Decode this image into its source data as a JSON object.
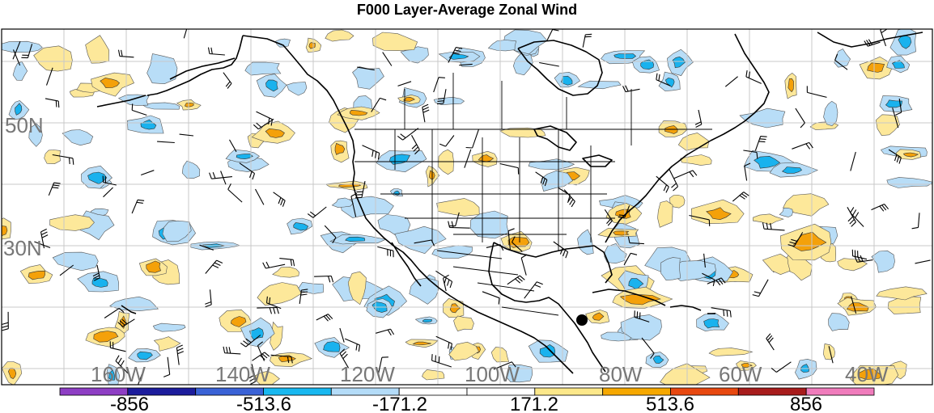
{
  "title": "F000 Layer-Average Zonal Wind",
  "lat_labels": [
    "50N",
    "30N"
  ],
  "lon_labels": [
    "160W",
    "140W",
    "120W",
    "100W",
    "80W",
    "60W",
    "40W"
  ],
  "colorbar": {
    "colors": [
      "#8e3ec4",
      "#1c1c9c",
      "#3a62d6",
      "#18b8f0",
      "#b4dcf8",
      "#ffffff",
      "#ffffff",
      "#fce88a",
      "#f6a800",
      "#e84810",
      "#a81c1c",
      "#f07cbc"
    ],
    "labels": [
      "-856",
      "-513.6",
      "-171.2",
      "171.2",
      "513.6",
      "856"
    ]
  },
  "colors": {
    "neg_light": "#b8ddf7",
    "neg_mid": "#19b2ee",
    "pos_light": "#fde89a",
    "pos_mid": "#f4a10a",
    "grid": "#c8c8c8",
    "coast": "#000000"
  },
  "icons": [
    "wind-barb-icon",
    "station-dot-icon"
  ]
}
